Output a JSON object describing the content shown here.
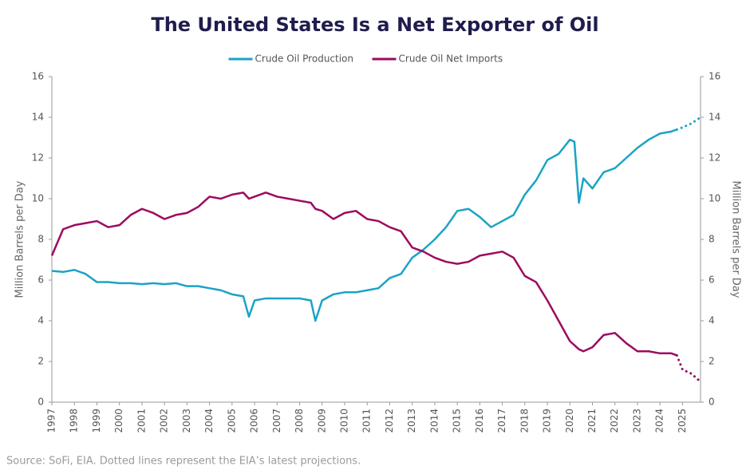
{
  "chart_data": {
    "type": "line",
    "title": "The United States Is a Net Exporter of Oil",
    "y_label": "Million Barrels per Day",
    "y2_label": "Million Barrels per Day",
    "source": "Source: SoFi, EIA. Dotted lines represent the EIA’s latest projections.",
    "x": [
      1997,
      1997.5,
      1998,
      1998.5,
      1999,
      1999.5,
      2000,
      2000.5,
      2001,
      2001.5,
      2002,
      2002.5,
      2003,
      2003.5,
      2004,
      2004.5,
      2005,
      2005.5,
      2005.75,
      2006,
      2006.5,
      2007,
      2007.5,
      2008,
      2008.5,
      2008.7,
      2009,
      2009.5,
      2010,
      2010.5,
      2011,
      2011.5,
      2012,
      2012.5,
      2013,
      2013.5,
      2014,
      2014.5,
      2015,
      2015.5,
      2016,
      2016.5,
      2017,
      2017.5,
      2018,
      2018.5,
      2019,
      2019.5,
      2020,
      2020.2,
      2020.4,
      2020.6,
      2021,
      2021.5,
      2022,
      2022.5,
      2023,
      2023.5,
      2024,
      2024.5,
      2024.75
    ],
    "series": [
      {
        "name": "Crude Oil Production",
        "color": "#1ba3c6",
        "values": [
          6.45,
          6.4,
          6.5,
          6.3,
          5.9,
          5.9,
          5.85,
          5.85,
          5.8,
          5.85,
          5.8,
          5.85,
          5.7,
          5.7,
          5.6,
          5.5,
          5.3,
          5.2,
          4.2,
          5.0,
          5.1,
          5.1,
          5.1,
          5.1,
          5.0,
          4.0,
          5.0,
          5.3,
          5.4,
          5.4,
          5.5,
          5.6,
          6.1,
          6.3,
          7.1,
          7.5,
          8.0,
          8.6,
          9.4,
          9.5,
          9.1,
          8.6,
          8.9,
          9.2,
          10.2,
          10.9,
          11.9,
          12.2,
          12.9,
          12.8,
          9.8,
          11.0,
          10.5,
          11.3,
          11.5,
          12.0,
          12.5,
          12.9,
          13.2,
          13.3,
          13.4
        ],
        "projection": {
          "x": [
            2024.75,
            2025,
            2025.4,
            2025.8
          ],
          "values": [
            13.4,
            13.5,
            13.7,
            14.0
          ]
        }
      },
      {
        "name": "Crude Oil Net Imports",
        "color": "#9c0b5f",
        "values": [
          7.2,
          8.5,
          8.7,
          8.8,
          8.9,
          8.6,
          8.7,
          9.2,
          9.5,
          9.3,
          9.0,
          9.2,
          9.3,
          9.6,
          10.1,
          10.0,
          10.2,
          10.3,
          10.0,
          10.1,
          10.3,
          10.1,
          10.0,
          9.9,
          9.8,
          9.5,
          9.4,
          9.0,
          9.3,
          9.4,
          9.0,
          8.9,
          8.6,
          8.4,
          7.6,
          7.4,
          7.1,
          6.9,
          6.8,
          6.9,
          7.2,
          7.3,
          7.4,
          7.1,
          6.2,
          5.9,
          5.0,
          4.0,
          3.0,
          2.8,
          2.6,
          2.5,
          2.7,
          3.3,
          3.4,
          2.9,
          2.5,
          2.5,
          2.4,
          2.4,
          2.3
        ],
        "projection": {
          "x": [
            2024.75,
            2025,
            2025.4,
            2025.8
          ],
          "values": [
            2.3,
            1.6,
            1.4,
            1.0
          ]
        }
      }
    ],
    "xlim": [
      1997,
      2025.8
    ],
    "xticks": [
      1997,
      1998,
      1999,
      2000,
      2001,
      2002,
      2003,
      2004,
      2005,
      2006,
      2007,
      2008,
      2009,
      2010,
      2011,
      2012,
      2013,
      2014,
      2015,
      2016,
      2017,
      2018,
      2019,
      2020,
      2021,
      2022,
      2023,
      2024,
      2025
    ],
    "ylim": [
      0,
      16
    ],
    "yticks": [
      0,
      2,
      4,
      6,
      8,
      10,
      12,
      14,
      16
    ],
    "y2lim": [
      0,
      16
    ],
    "y2ticks": [
      0,
      2,
      4,
      6,
      8,
      10,
      12,
      14,
      16
    ],
    "legend": "top"
  }
}
